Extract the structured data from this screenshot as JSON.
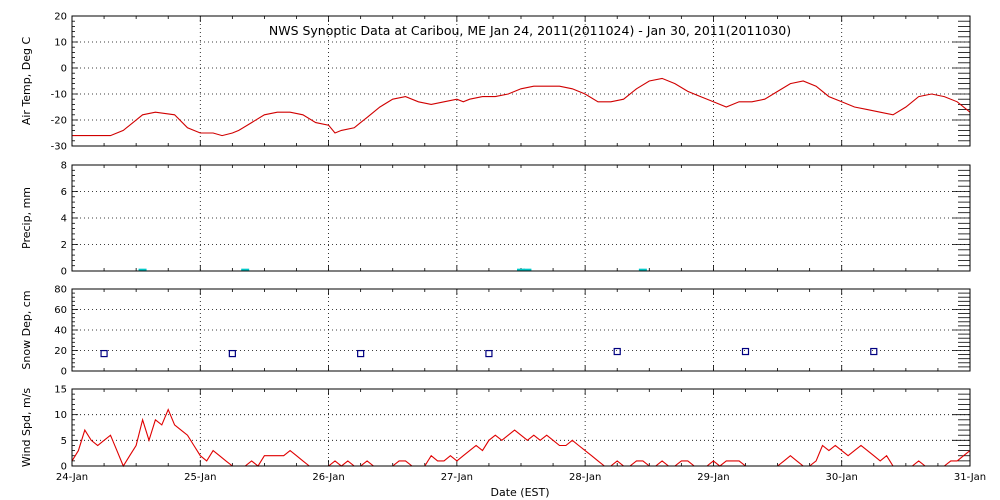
{
  "chart_data": {
    "title": "NWS Synoptic Data at Caribou, ME   Jan 24, 2011(2011024) - Jan 30, 2011(2011030)",
    "xlabel": "Date (EST)",
    "x_tick_labels": [
      "24-Jan",
      "25-Jan",
      "26-Jan",
      "27-Jan",
      "28-Jan",
      "29-Jan",
      "30-Jan",
      "31-Jan"
    ],
    "x_range_days": [
      0,
      7
    ],
    "grid": "dotted",
    "colors": {
      "air_temp": "#d00000",
      "precip": "#00c8c8",
      "snow_marker": "#000080",
      "wind": "#e00000"
    },
    "panels": [
      {
        "id": "air-temp",
        "type": "line",
        "ylabel": "Air Temp, Deg C",
        "ylim": [
          -30,
          20
        ],
        "yticks": [
          -30,
          -20,
          -10,
          0,
          10,
          20
        ],
        "x": [
          0,
          0.1,
          0.3,
          0.4,
          0.55,
          0.65,
          0.8,
          0.9,
          1.0,
          1.1,
          1.17,
          1.25,
          1.3,
          1.4,
          1.5,
          1.6,
          1.7,
          1.8,
          1.9,
          2.0,
          2.05,
          2.1,
          2.2,
          2.25,
          2.3,
          2.4,
          2.5,
          2.6,
          2.7,
          2.8,
          2.9,
          3.0,
          3.05,
          3.1,
          3.2,
          3.3,
          3.4,
          3.5,
          3.6,
          3.7,
          3.8,
          3.9,
          4.0,
          4.1,
          4.2,
          4.3,
          4.4,
          4.5,
          4.6,
          4.7,
          4.8,
          4.9,
          5.0,
          5.1,
          5.2,
          5.3,
          5.4,
          5.5,
          5.6,
          5.7,
          5.8,
          5.9,
          6.0,
          6.1,
          6.2,
          6.3,
          6.4,
          6.5,
          6.6,
          6.7,
          6.8,
          6.9,
          7.0
        ],
        "values": [
          -26,
          -26,
          -26,
          -24,
          -18,
          -17,
          -18,
          -23,
          -25,
          -25,
          -26,
          -25,
          -24,
          -21,
          -18,
          -17,
          -17,
          -18,
          -21,
          -22,
          -25,
          -24,
          -23,
          -21,
          -19,
          -15,
          -12,
          -11,
          -13,
          -14,
          -13,
          -12,
          -13,
          -12,
          -11,
          -11,
          -10,
          -8,
          -7,
          -7,
          -7,
          -8,
          -10,
          -13,
          -13,
          -12,
          -8,
          -5,
          -4,
          -6,
          -9,
          -11,
          -13,
          -15,
          -13,
          -13,
          -12,
          -9,
          -6,
          -5,
          -7,
          -11,
          -13,
          -15,
          -16,
          -17,
          -18,
          -15,
          -11,
          -10,
          -11,
          -13,
          -17
        ]
      },
      {
        "id": "precip",
        "type": "bar",
        "ylabel": "Precip, mm",
        "ylim": [
          0,
          8
        ],
        "yticks": [
          0,
          2,
          4,
          6,
          8
        ],
        "x": [
          0.55,
          1.35,
          3.5,
          3.55,
          4.45
        ],
        "values": [
          0.1,
          0.1,
          0.1,
          0.1,
          0.1
        ]
      },
      {
        "id": "snow-depth",
        "type": "scatter",
        "ylabel": "Snow Dep, cm",
        "ylim": [
          0,
          80
        ],
        "yticks": [
          0,
          20,
          40,
          60,
          80
        ],
        "x": [
          0.25,
          1.25,
          2.25,
          3.25,
          4.25,
          5.25,
          6.25
        ],
        "values": [
          17,
          17,
          17,
          17,
          19,
          19,
          19
        ]
      },
      {
        "id": "wind-speed",
        "type": "line",
        "ylabel": "Wind Spd, m/s",
        "ylim": [
          0,
          15
        ],
        "yticks": [
          0,
          5,
          10,
          15
        ],
        "x": [
          0,
          0.05,
          0.1,
          0.15,
          0.2,
          0.25,
          0.3,
          0.35,
          0.4,
          0.45,
          0.5,
          0.55,
          0.6,
          0.65,
          0.7,
          0.75,
          0.8,
          0.85,
          0.9,
          0.95,
          1.0,
          1.05,
          1.1,
          1.15,
          1.2,
          1.25,
          1.3,
          1.35,
          1.4,
          1.45,
          1.5,
          1.55,
          1.6,
          1.65,
          1.7,
          1.75,
          1.8,
          1.85,
          1.9,
          1.95,
          2.0,
          2.05,
          2.1,
          2.15,
          2.2,
          2.25,
          2.3,
          2.35,
          2.4,
          2.45,
          2.5,
          2.55,
          2.6,
          2.65,
          2.7,
          2.75,
          2.8,
          2.85,
          2.9,
          2.95,
          3.0,
          3.05,
          3.1,
          3.15,
          3.2,
          3.25,
          3.3,
          3.35,
          3.4,
          3.45,
          3.5,
          3.55,
          3.6,
          3.65,
          3.7,
          3.75,
          3.8,
          3.85,
          3.9,
          3.95,
          4.0,
          4.05,
          4.1,
          4.15,
          4.2,
          4.25,
          4.3,
          4.35,
          4.4,
          4.45,
          4.5,
          4.55,
          4.6,
          4.65,
          4.7,
          4.75,
          4.8,
          4.85,
          4.9,
          4.95,
          5.0,
          5.05,
          5.1,
          5.15,
          5.2,
          5.25,
          5.3,
          5.35,
          5.4,
          5.45,
          5.5,
          5.55,
          5.6,
          5.65,
          5.7,
          5.75,
          5.8,
          5.85,
          5.9,
          5.95,
          6.0,
          6.05,
          6.1,
          6.15,
          6.2,
          6.25,
          6.3,
          6.35,
          6.4,
          6.45,
          6.5,
          6.55,
          6.6,
          6.65,
          6.7,
          6.75,
          6.8,
          6.85,
          6.9,
          6.95,
          7.0
        ],
        "values": [
          1,
          3,
          7,
          5,
          4,
          5,
          6,
          3,
          0,
          2,
          4,
          9,
          5,
          9,
          8,
          11,
          8,
          7,
          6,
          4,
          2,
          1,
          3,
          2,
          1,
          0,
          0,
          0,
          1,
          0,
          2,
          2,
          2,
          2,
          3,
          2,
          1,
          0,
          0,
          0,
          0,
          1,
          0,
          1,
          0,
          0,
          1,
          0,
          0,
          0,
          0,
          1,
          1,
          0,
          0,
          0,
          2,
          1,
          1,
          2,
          1,
          2,
          3,
          4,
          3,
          5,
          6,
          5,
          6,
          7,
          6,
          5,
          6,
          5,
          6,
          5,
          4,
          4,
          5,
          4,
          3,
          2,
          1,
          0,
          0,
          1,
          0,
          0,
          1,
          1,
          0,
          0,
          1,
          0,
          0,
          1,
          1,
          0,
          0,
          0,
          1,
          0,
          1,
          1,
          1,
          0,
          0,
          0,
          0,
          0,
          0,
          1,
          2,
          1,
          0,
          0,
          1,
          4,
          3,
          4,
          3,
          2,
          3,
          4,
          3,
          2,
          1,
          2,
          0,
          0,
          0,
          0,
          1,
          0,
          0,
          0,
          0,
          1,
          1,
          2,
          3
        ]
      }
    ]
  }
}
